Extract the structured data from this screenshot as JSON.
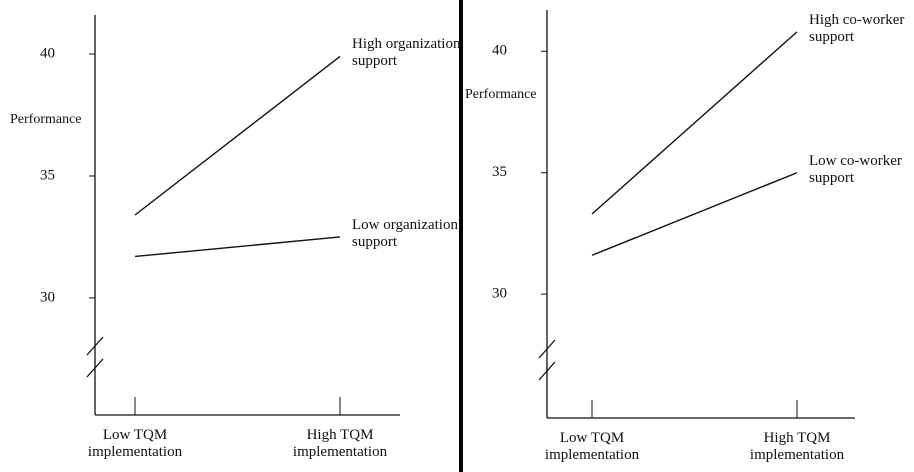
{
  "chart_data": [
    {
      "type": "line",
      "y_label": "Performance",
      "categories": [
        "Low TQM implementation",
        "High TQM implementation"
      ],
      "series": [
        {
          "name": "High organization support",
          "color": "#111111",
          "values": [
            33.4,
            39.9
          ]
        },
        {
          "name": "Low organization support",
          "color": "#111111",
          "values": [
            31.7,
            32.5
          ]
        }
      ],
      "ylim": [
        25.2,
        41.6
      ],
      "yticks": [
        30,
        35,
        40
      ]
    },
    {
      "type": "line",
      "y_label": "Performance",
      "categories": [
        "Low TQM implementation",
        "High TQM implementation"
      ],
      "series": [
        {
          "name": "High co-worker support",
          "color": "#111111",
          "values": [
            33.3,
            40.8
          ]
        },
        {
          "name": "Low co-worker support",
          "color": "#111111",
          "values": [
            31.6,
            35.0
          ]
        }
      ],
      "ylim": [
        24.9,
        41.7
      ],
      "yticks": [
        30,
        35,
        40
      ]
    }
  ]
}
